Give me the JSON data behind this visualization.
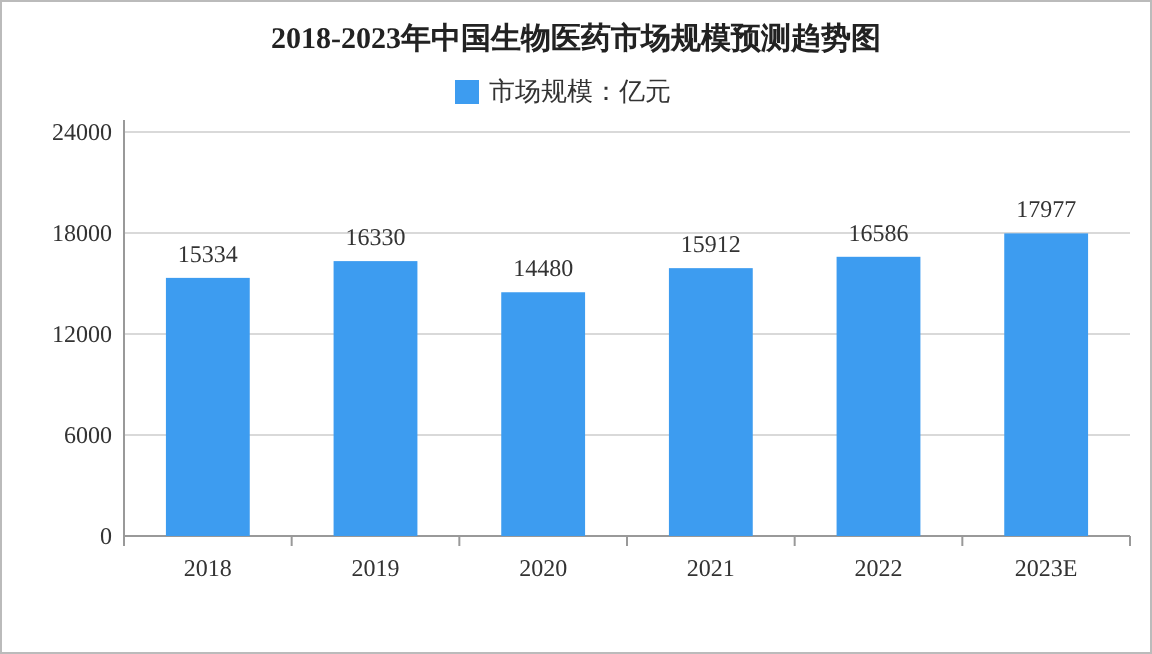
{
  "chart_data": {
    "type": "bar",
    "title": "2018-2023年中国生物医药市场规模预测趋势图",
    "categories": [
      "2018",
      "2019",
      "2020",
      "2021",
      "2022",
      "2023E"
    ],
    "series": [
      {
        "name": "市场规模：亿元",
        "color": "#3d9cf0",
        "values": [
          15334,
          16330,
          14480,
          15912,
          16586,
          17977
        ]
      }
    ],
    "ylim": [
      0,
      24000
    ],
    "yticks": [
      0,
      6000,
      12000,
      18000,
      24000
    ],
    "grid": "y",
    "legend": "top",
    "data_labels": true
  }
}
